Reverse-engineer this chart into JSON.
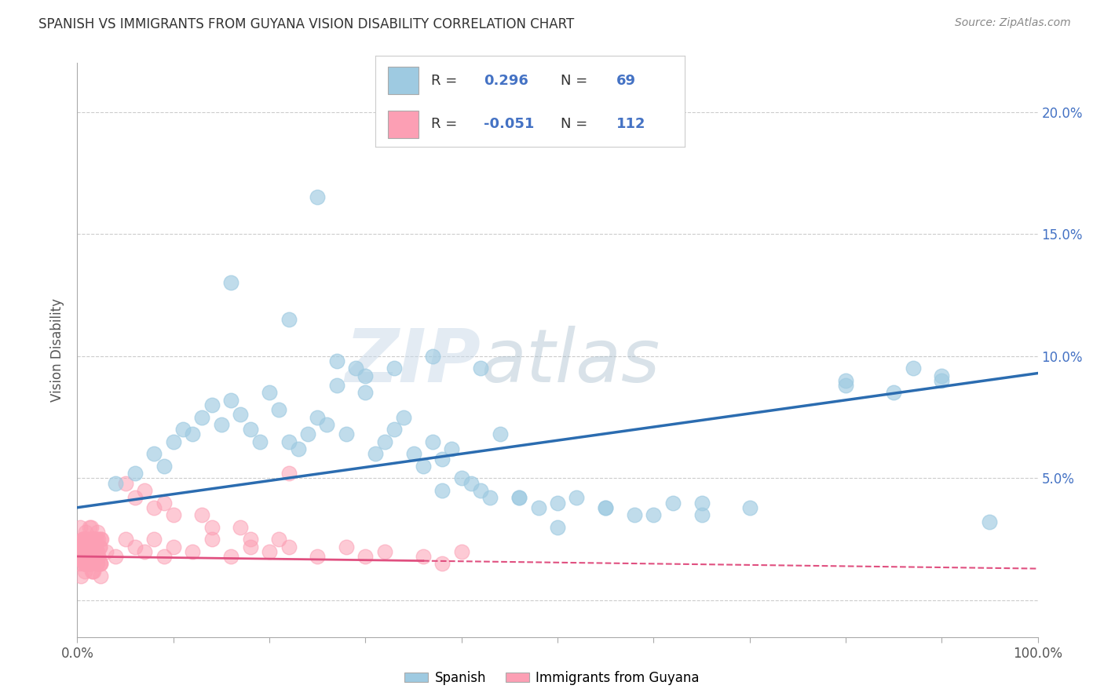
{
  "title": "SPANISH VS IMMIGRANTS FROM GUYANA VISION DISABILITY CORRELATION CHART",
  "source": "Source: ZipAtlas.com",
  "ylabel": "Vision Disability",
  "xlim": [
    0.0,
    1.0
  ],
  "ylim": [
    -0.015,
    0.22
  ],
  "xticks": [
    0.0,
    0.1,
    0.2,
    0.3,
    0.4,
    0.5,
    0.6,
    0.7,
    0.8,
    0.9,
    1.0
  ],
  "xtick_labels": [
    "0.0%",
    "",
    "",
    "",
    "",
    "",
    "",
    "",
    "",
    "",
    "100.0%"
  ],
  "yticks": [
    0.0,
    0.05,
    0.1,
    0.15,
    0.2
  ],
  "ytick_labels": [
    "",
    "5.0%",
    "10.0%",
    "15.0%",
    "20.0%"
  ],
  "color_spanish": "#9ecae1",
  "color_guyana": "#fc9fb4",
  "regression_color_spanish": "#2b6cb0",
  "regression_color_guyana": "#e05080",
  "watermark_text": "ZIPatlas",
  "spanish_intercept": 0.038,
  "spanish_slope": 0.055,
  "guyana_intercept": 0.018,
  "guyana_slope": -0.005,
  "spanish_points_x": [
    0.04,
    0.06,
    0.08,
    0.09,
    0.1,
    0.11,
    0.12,
    0.13,
    0.14,
    0.15,
    0.16,
    0.17,
    0.18,
    0.19,
    0.2,
    0.21,
    0.22,
    0.23,
    0.24,
    0.25,
    0.26,
    0.27,
    0.28,
    0.29,
    0.3,
    0.31,
    0.32,
    0.33,
    0.34,
    0.35,
    0.36,
    0.37,
    0.38,
    0.39,
    0.4,
    0.41,
    0.42,
    0.43,
    0.44,
    0.46,
    0.48,
    0.5,
    0.52,
    0.55,
    0.58,
    0.62,
    0.65,
    0.8,
    0.85,
    0.87,
    0.9,
    0.38,
    0.25,
    0.16,
    0.22,
    0.27,
    0.3,
    0.33,
    0.37,
    0.42,
    0.46,
    0.5,
    0.55,
    0.6,
    0.65,
    0.7,
    0.8,
    0.9,
    0.95
  ],
  "spanish_points_y": [
    0.048,
    0.052,
    0.06,
    0.055,
    0.065,
    0.07,
    0.068,
    0.075,
    0.08,
    0.072,
    0.082,
    0.076,
    0.07,
    0.065,
    0.085,
    0.078,
    0.065,
    0.062,
    0.068,
    0.075,
    0.072,
    0.088,
    0.068,
    0.095,
    0.085,
    0.06,
    0.065,
    0.07,
    0.075,
    0.06,
    0.055,
    0.065,
    0.058,
    0.062,
    0.05,
    0.048,
    0.045,
    0.042,
    0.068,
    0.042,
    0.038,
    0.04,
    0.042,
    0.038,
    0.035,
    0.04,
    0.035,
    0.088,
    0.085,
    0.095,
    0.092,
    0.045,
    0.165,
    0.13,
    0.115,
    0.098,
    0.092,
    0.095,
    0.1,
    0.095,
    0.042,
    0.03,
    0.038,
    0.035,
    0.04,
    0.038,
    0.09,
    0.09,
    0.032
  ],
  "guyana_dense_x": [
    0.002,
    0.003,
    0.004,
    0.005,
    0.006,
    0.007,
    0.008,
    0.009,
    0.01,
    0.011,
    0.012,
    0.013,
    0.014,
    0.015,
    0.016,
    0.017,
    0.018,
    0.019,
    0.02,
    0.021,
    0.022,
    0.023,
    0.024,
    0.025,
    0.003,
    0.005,
    0.007,
    0.009,
    0.011,
    0.013,
    0.015,
    0.017,
    0.019,
    0.021,
    0.023,
    0.004,
    0.006,
    0.008,
    0.01,
    0.012,
    0.014,
    0.016,
    0.018,
    0.02,
    0.022,
    0.024,
    0.003,
    0.006,
    0.009,
    0.012,
    0.015,
    0.018,
    0.021,
    0.024,
    0.002,
    0.004,
    0.007,
    0.01,
    0.013,
    0.016,
    0.019,
    0.022,
    0.005,
    0.008,
    0.011,
    0.014,
    0.017,
    0.02,
    0.023,
    0.003,
    0.006,
    0.009,
    0.012,
    0.015,
    0.018,
    0.021,
    0.024,
    0.004,
    0.007,
    0.01
  ],
  "guyana_dense_y": [
    0.015,
    0.02,
    0.01,
    0.025,
    0.018,
    0.022,
    0.012,
    0.028,
    0.016,
    0.02,
    0.025,
    0.015,
    0.03,
    0.018,
    0.022,
    0.012,
    0.025,
    0.02,
    0.015,
    0.028,
    0.018,
    0.022,
    0.01,
    0.025,
    0.03,
    0.022,
    0.015,
    0.025,
    0.018,
    0.03,
    0.012,
    0.025,
    0.02,
    0.015,
    0.022,
    0.018,
    0.025,
    0.015,
    0.022,
    0.018,
    0.025,
    0.012,
    0.02,
    0.025,
    0.018,
    0.015,
    0.02,
    0.025,
    0.015,
    0.022,
    0.018,
    0.025,
    0.02,
    0.015,
    0.022,
    0.018,
    0.025,
    0.02,
    0.015,
    0.022,
    0.018,
    0.025,
    0.02,
    0.015,
    0.022,
    0.018,
    0.025,
    0.02,
    0.015,
    0.022,
    0.018,
    0.025,
    0.02,
    0.015,
    0.022,
    0.018,
    0.025,
    0.02,
    0.015,
    0.022
  ],
  "guyana_sparse_x": [
    0.03,
    0.04,
    0.05,
    0.06,
    0.07,
    0.08,
    0.09,
    0.1,
    0.12,
    0.14,
    0.16,
    0.18,
    0.2,
    0.22,
    0.25,
    0.28,
    0.32,
    0.36,
    0.4,
    0.06,
    0.08,
    0.1,
    0.14,
    0.18,
    0.22,
    0.3,
    0.38,
    0.05,
    0.07,
    0.09,
    0.13,
    0.17,
    0.21
  ],
  "guyana_sparse_y": [
    0.02,
    0.018,
    0.025,
    0.022,
    0.02,
    0.025,
    0.018,
    0.022,
    0.02,
    0.025,
    0.018,
    0.022,
    0.02,
    0.052,
    0.018,
    0.022,
    0.02,
    0.018,
    0.02,
    0.042,
    0.038,
    0.035,
    0.03,
    0.025,
    0.022,
    0.018,
    0.015,
    0.048,
    0.045,
    0.04,
    0.035,
    0.03,
    0.025
  ]
}
